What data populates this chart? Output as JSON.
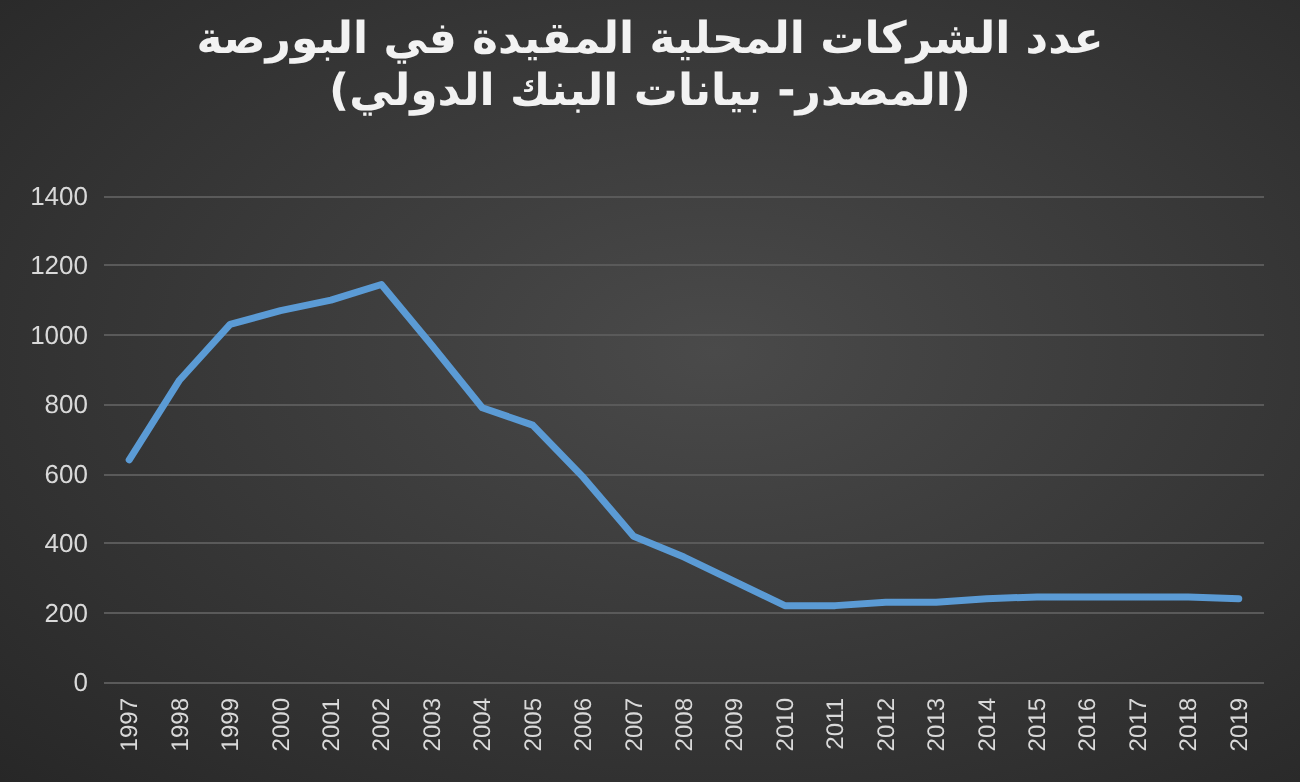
{
  "chart_data": {
    "type": "line",
    "title": "عدد الشركات المحلية المقيدة في البورصة",
    "subtitle": "(المصدر- بيانات البنك الدولي)",
    "categories": [
      "1997",
      "1998",
      "1999",
      "2000",
      "2001",
      "2002",
      "2003",
      "2004",
      "2005",
      "2006",
      "2007",
      "2008",
      "2009",
      "2010",
      "2011",
      "2012",
      "2013",
      "2014",
      "2015",
      "2016",
      "2017",
      "2018",
      "2019"
    ],
    "series": [
      {
        "color": "#5b9bd5",
        "values": [
          640,
          870,
          1030,
          1070,
          1100,
          1145,
          970,
          790,
          740,
          590,
          420,
          360,
          290,
          220,
          220,
          230,
          230,
          240,
          245,
          245,
          245,
          245,
          240
        ]
      }
    ],
    "ylim": [
      0,
      1400
    ],
    "yticks": [
      0,
      200,
      400,
      600,
      800,
      1000,
      1200,
      1400
    ],
    "grid": "y",
    "marker": "none",
    "line_style": "solid"
  }
}
